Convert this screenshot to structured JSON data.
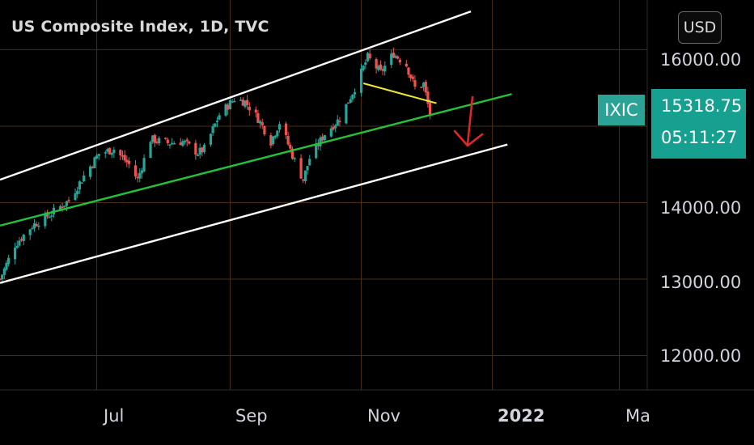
{
  "header": {
    "title": "US Composite Index, 1D, TVC",
    "currency_button": "USD"
  },
  "badge": {
    "symbol": "IXIC",
    "price": "15318.75",
    "countdown": "05:11:27"
  },
  "colors": {
    "up": "#26a69a",
    "down": "#ef5350",
    "grid": "#4d2e12",
    "channel": "#ffffff",
    "midline": "#22c33a",
    "neckline": "#f2e733",
    "arrow": "#e32626",
    "badge": "#16a090"
  },
  "chart_data": {
    "type": "candlestick",
    "title": "US Composite Index, 1D, TVC",
    "y_axis": {
      "ticks": [
        "16000.00",
        "14000.00",
        "13000.00",
        "12000.00"
      ],
      "tick_values": [
        16000,
        14000,
        13000,
        12000
      ],
      "grid_values": [
        16000,
        15000,
        14000,
        13000,
        12000
      ],
      "range": [
        11550,
        16650
      ]
    },
    "x_axis": {
      "ticks": [
        "Jul",
        "Sep",
        "Nov",
        "2022",
        "Ma"
      ],
      "tick_dates": [
        "2021-07-01",
        "2021-09-01",
        "2021-11-01",
        "2022-01-01",
        "2022-03-01"
      ],
      "range": [
        "2021-05-17",
        "2022-03-14"
      ]
    },
    "grid": true,
    "last_price": 15318.75,
    "close_points": [
      {
        "date": "2021-05-17",
        "close": 13000
      },
      {
        "date": "2021-05-24",
        "close": 13450
      },
      {
        "date": "2021-06-01",
        "close": 13700
      },
      {
        "date": "2021-06-10",
        "close": 13860
      },
      {
        "date": "2021-06-18",
        "close": 14030
      },
      {
        "date": "2021-06-25",
        "close": 14350
      },
      {
        "date": "2021-07-02",
        "close": 14640
      },
      {
        "date": "2021-07-09",
        "close": 14700
      },
      {
        "date": "2021-07-16",
        "close": 14500
      },
      {
        "date": "2021-07-20",
        "close": 14300
      },
      {
        "date": "2021-07-26",
        "close": 14830
      },
      {
        "date": "2021-08-03",
        "close": 14780
      },
      {
        "date": "2021-08-10",
        "close": 14800
      },
      {
        "date": "2021-08-17",
        "close": 14650
      },
      {
        "date": "2021-08-20",
        "close": 14700
      },
      {
        "date": "2021-08-27",
        "close": 15150
      },
      {
        "date": "2021-09-03",
        "close": 15360
      },
      {
        "date": "2021-09-08",
        "close": 15320
      },
      {
        "date": "2021-09-14",
        "close": 15100
      },
      {
        "date": "2021-09-20",
        "close": 14800
      },
      {
        "date": "2021-09-24",
        "close": 15050
      },
      {
        "date": "2021-10-01",
        "close": 14550
      },
      {
        "date": "2021-10-05",
        "close": 14300
      },
      {
        "date": "2021-10-08",
        "close": 14580
      },
      {
        "date": "2021-10-15",
        "close": 14900
      },
      {
        "date": "2021-10-22",
        "close": 15100
      },
      {
        "date": "2021-10-29",
        "close": 15500
      },
      {
        "date": "2021-11-04",
        "close": 15900
      },
      {
        "date": "2021-11-10",
        "close": 15700
      },
      {
        "date": "2021-11-16",
        "close": 15950
      },
      {
        "date": "2021-11-22",
        "close": 15800
      },
      {
        "date": "2021-11-26",
        "close": 15500
      },
      {
        "date": "2021-11-30",
        "close": 15550
      },
      {
        "date": "2021-12-03",
        "close": 15150
      }
    ],
    "drawings": [
      {
        "name": "channel-upper",
        "from": {
          "date": "2021-05-17",
          "value": 14300
        },
        "to": {
          "date": "2021-12-22",
          "value": 16500
        }
      },
      {
        "name": "channel-middle",
        "from": {
          "date": "2021-05-17",
          "value": 13700
        },
        "to": {
          "date": "2022-01-10",
          "value": 15420
        }
      },
      {
        "name": "channel-lower",
        "from": {
          "date": "2021-05-17",
          "value": 12950
        },
        "to": {
          "date": "2022-01-08",
          "value": 14760
        }
      },
      {
        "name": "neckline",
        "from": {
          "date": "2021-11-02",
          "value": 15560
        },
        "to": {
          "date": "2021-12-06",
          "value": 15300
        }
      }
    ]
  }
}
